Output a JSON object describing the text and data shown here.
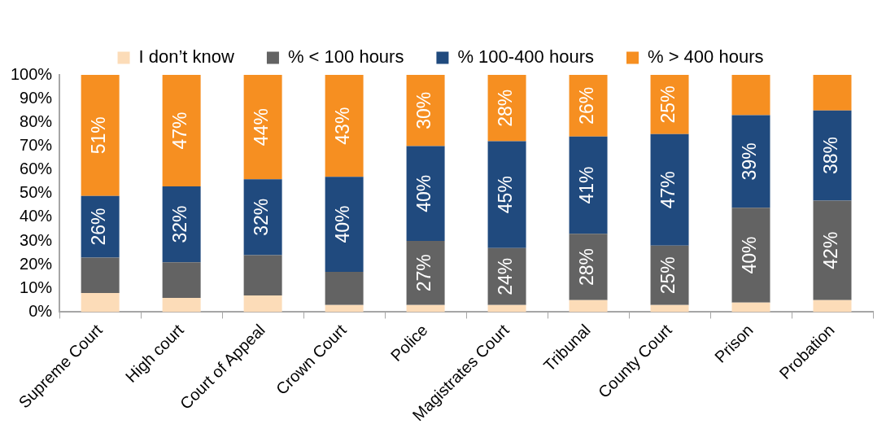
{
  "chart_data": {
    "type": "bar",
    "stacked": true,
    "legend": "top",
    "grid": false,
    "categories": [
      "Supreme Court",
      "High court",
      "Court of Appeal",
      "Crown Court",
      "Police",
      "Magistrates Court",
      "Tribunal",
      "County Court",
      "Prison",
      "Probation"
    ],
    "ylim": [
      0,
      100
    ],
    "yticks": [
      {
        "value": 0,
        "label": "0%"
      },
      {
        "value": 10,
        "label": "10%"
      },
      {
        "value": 20,
        "label": "20%"
      },
      {
        "value": 30,
        "label": "30%"
      },
      {
        "value": 40,
        "label": "40%"
      },
      {
        "value": 50,
        "label": "50%"
      },
      {
        "value": 60,
        "label": "60%"
      },
      {
        "value": 70,
        "label": "70%"
      },
      {
        "value": 80,
        "label": "80%"
      },
      {
        "value": 90,
        "label": "90%"
      },
      {
        "value": 100,
        "label": "100%"
      }
    ],
    "series": [
      {
        "name": "I don’t know",
        "color": "#fcdcb8",
        "values": [
          8,
          6,
          7,
          3,
          3,
          3,
          5,
          3,
          4,
          5
        ]
      },
      {
        "name": "% < 100 hours",
        "color": "#636363",
        "values": [
          15,
          15,
          17,
          14,
          27,
          24,
          28,
          25,
          40,
          42
        ],
        "value_labels": [
          null,
          null,
          null,
          null,
          "27%",
          "24%",
          "28%",
          "25%",
          "40%",
          "42%"
        ]
      },
      {
        "name": "% 100-400 hours",
        "color": "#204a7e",
        "values": [
          26,
          32,
          32,
          40,
          40,
          45,
          41,
          47,
          39,
          38
        ],
        "value_labels": [
          "26%",
          "32%",
          "32%",
          "40%",
          "40%",
          "45%",
          "41%",
          "47%",
          "39%",
          "38%"
        ]
      },
      {
        "name": "% > 400 hours",
        "color": "#f68f21",
        "values": [
          51,
          47,
          44,
          43,
          30,
          28,
          26,
          25,
          17,
          15
        ],
        "value_labels": [
          "51%",
          "47%",
          "44%",
          "43%",
          "30%",
          "28%",
          "26%",
          "25%",
          null,
          null
        ]
      }
    ]
  }
}
